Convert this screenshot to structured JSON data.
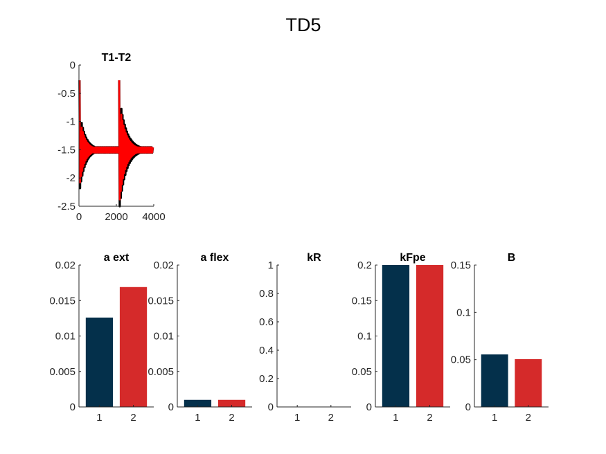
{
  "figure": {
    "title": "TD5"
  },
  "chart_data": [
    {
      "type": "line",
      "title": "T1-T2",
      "xlim": [
        0,
        4000
      ],
      "ylim": [
        -2.5,
        0
      ],
      "xticks": [
        0,
        2000,
        4000
      ],
      "yticks": [
        0,
        -0.5,
        -1,
        -1.5,
        -2,
        -2.5
      ],
      "xtick_labels": [
        "0",
        "2000",
        "4000"
      ],
      "ytick_labels": [
        "0",
        "-0.5",
        "-1",
        "-1.5",
        "-2",
        "-2.5"
      ],
      "series": [
        {
          "color": "#000000",
          "segments": [
            {
              "x_start": 30,
              "x_end": 2100,
              "baseline": -1.5,
              "peak": -0.27,
              "first_trough": -2.18,
              "decay_per_cycle": 0.82,
              "period": 60
            },
            {
              "x_start": 2150,
              "x_end": 3950,
              "baseline": -1.5,
              "peak": -0.27,
              "first_trough": -2.5,
              "decay_per_cycle": 0.85,
              "period": 60
            }
          ]
        },
        {
          "color": "#ff0000",
          "segments": [
            {
              "x_start": 30,
              "x_end": 2100,
              "baseline": -1.5,
              "peak": -0.27,
              "first_trough": -2.08,
              "decay_per_cycle": 0.8,
              "period": 60
            },
            {
              "x_start": 2150,
              "x_end": 3950,
              "baseline": -1.5,
              "peak": -0.27,
              "first_trough": -2.38,
              "decay_per_cycle": 0.83,
              "period": 60
            }
          ]
        }
      ]
    },
    {
      "type": "bar",
      "title": "a ext",
      "categories": [
        "1",
        "2"
      ],
      "values": [
        0.0126,
        0.0169
      ],
      "ylim": [
        0,
        0.02
      ],
      "yticks": [
        0,
        0.005,
        0.01,
        0.015,
        0.02
      ],
      "ytick_labels": [
        "0",
        "0.005",
        "0.01",
        "0.015",
        "0.02"
      ],
      "colors": [
        "#04304b",
        "#d52a2a"
      ]
    },
    {
      "type": "bar",
      "title": "a flex",
      "categories": [
        "1",
        "2"
      ],
      "values": [
        0.001,
        0.001
      ],
      "ylim": [
        0,
        0.02
      ],
      "yticks": [
        0,
        0.005,
        0.01,
        0.015,
        0.02
      ],
      "ytick_labels": [
        "0",
        "0.005",
        "0.01",
        "0.015",
        "0.02"
      ],
      "colors": [
        "#04304b",
        "#d52a2a"
      ]
    },
    {
      "type": "bar",
      "title": "kR",
      "categories": [
        "1",
        "2"
      ],
      "values": [
        0,
        0
      ],
      "ylim": [
        0,
        1
      ],
      "yticks": [
        0,
        0.2,
        0.4,
        0.6,
        0.8,
        1
      ],
      "ytick_labels": [
        "0",
        "0.2",
        "0.4",
        "0.6",
        "0.8",
        "1"
      ],
      "colors": [
        "#04304b",
        "#d52a2a"
      ]
    },
    {
      "type": "bar",
      "title": "kFpe",
      "categories": [
        "1",
        "2"
      ],
      "values": [
        0.2,
        0.2
      ],
      "ylim": [
        0,
        0.2
      ],
      "yticks": [
        0,
        0.05,
        0.1,
        0.15,
        0.2
      ],
      "ytick_labels": [
        "0",
        "0.05",
        "0.1",
        "0.15",
        "0.2"
      ],
      "colors": [
        "#04304b",
        "#d52a2a"
      ]
    },
    {
      "type": "bar",
      "title": "B",
      "categories": [
        "1",
        "2"
      ],
      "values": [
        0.0555,
        0.0505
      ],
      "ylim": [
        0,
        0.15
      ],
      "yticks": [
        0,
        0.05,
        0.1,
        0.15
      ],
      "ytick_labels": [
        "0",
        "0.05",
        "0.1",
        "0.15"
      ],
      "colors": [
        "#04304b",
        "#d52a2a"
      ]
    }
  ]
}
